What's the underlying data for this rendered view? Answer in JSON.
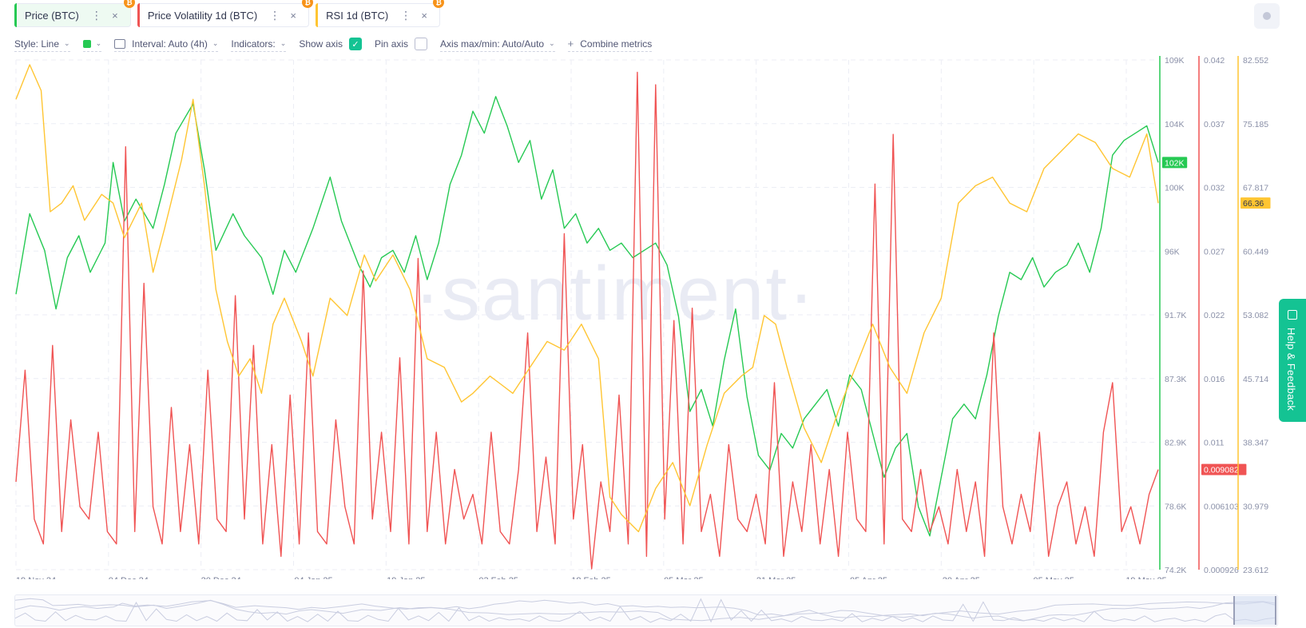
{
  "metric_chips": [
    {
      "label": "Price (BTC)",
      "color": "#26c953",
      "active": true,
      "badge": "₿"
    },
    {
      "label": "Price Volatility 1d (BTC)",
      "color": "#f05454",
      "active": false,
      "badge": "₿"
    },
    {
      "label": "RSI 1d (BTC)",
      "color": "#ffc532",
      "active": false,
      "badge": "₿"
    }
  ],
  "icons": {
    "more": "⋮",
    "close": "×",
    "chevron": "⌄",
    "check": "✓",
    "plus": "+"
  },
  "settings": {
    "style_label": "Style: Line",
    "interval_label": "Interval: Auto (4h)",
    "indicators_label": "Indicators:",
    "show_axis_label": "Show axis",
    "pin_axis_label": "Pin axis",
    "axis_maxmin_label": "Axis max/min: Auto/Auto",
    "combine_label": "Combine metrics"
  },
  "help_label": "Help & Feedback",
  "chart_data": {
    "type": "line",
    "watermark": "·santiment·",
    "x_ticks": [
      "19 Nov 24",
      "04 Dec 24",
      "20 Dec 24",
      "04 Jan 25",
      "19 Jan 25",
      "03 Feb 25",
      "18 Feb 25",
      "05 Mar 25",
      "21 Mar 25",
      "05 Apr 25",
      "20 Apr 25",
      "05 May 25",
      "19 May 25"
    ],
    "axes": {
      "price": {
        "ticks": [
          "109K",
          "104K",
          "100K",
          "96K",
          "91.7K",
          "87.3K",
          "82.9K",
          "78.6K",
          "74.2K"
        ],
        "range": [
          74200,
          109000
        ],
        "current_label": "102K",
        "color": "#26c953"
      },
      "volatility": {
        "ticks": [
          "0.042",
          "0.037",
          "0.032",
          "0.027",
          "0.022",
          "0.016",
          "0.011",
          "0.006103",
          "0.000926"
        ],
        "range": [
          0.000926,
          0.042
        ],
        "current_label": "0.009082",
        "color": "#f05454"
      },
      "rsi": {
        "ticks": [
          "82.552",
          "75.185",
          "67.817",
          "60.449",
          "53.082",
          "45.714",
          "38.347",
          "30.979",
          "23.612"
        ],
        "range": [
          23.612,
          82.552
        ],
        "current_label": "66.36",
        "color": "#ffc532"
      }
    },
    "series": [
      {
        "name": "Price (BTC)",
        "color": "#26c953",
        "x": [
          0,
          0.012,
          0.025,
          0.035,
          0.045,
          0.055,
          0.065,
          0.078,
          0.085,
          0.095,
          0.105,
          0.12,
          0.13,
          0.14,
          0.155,
          0.165,
          0.175,
          0.19,
          0.2,
          0.215,
          0.225,
          0.235,
          0.245,
          0.26,
          0.275,
          0.285,
          0.3,
          0.31,
          0.32,
          0.33,
          0.34,
          0.35,
          0.36,
          0.37,
          0.38,
          0.39,
          0.4,
          0.41,
          0.42,
          0.43,
          0.44,
          0.45,
          0.46,
          0.47,
          0.48,
          0.49,
          0.5,
          0.51,
          0.52,
          0.53,
          0.54,
          0.55,
          0.56,
          0.57,
          0.58,
          0.59,
          0.6,
          0.61,
          0.62,
          0.63,
          0.64,
          0.65,
          0.66,
          0.67,
          0.68,
          0.69,
          0.7,
          0.71,
          0.72,
          0.73,
          0.74,
          0.75,
          0.76,
          0.77,
          0.78,
          0.79,
          0.8,
          0.81,
          0.82,
          0.83,
          0.84,
          0.85,
          0.86,
          0.87,
          0.88,
          0.89,
          0.9,
          0.91,
          0.92,
          0.93,
          0.94,
          0.95,
          0.96,
          0.97,
          0.98,
          0.99,
          1.0
        ],
        "values": [
          93000,
          98500,
          96000,
          92000,
          95500,
          97000,
          94500,
          96500,
          102000,
          98000,
          99500,
          97500,
          100500,
          104000,
          106000,
          101500,
          96000,
          98500,
          97000,
          95500,
          93000,
          96000,
          94500,
          97500,
          101000,
          98000,
          95000,
          93500,
          95500,
          96000,
          94500,
          97000,
          94000,
          96500,
          100500,
          102500,
          105500,
          104000,
          106500,
          104500,
          102000,
          103500,
          99500,
          101500,
          97500,
          98500,
          96500,
          97500,
          96000,
          96500,
          95500,
          96000,
          96500,
          95000,
          91500,
          85000,
          86500,
          84000,
          88500,
          92000,
          86000,
          82000,
          81000,
          83500,
          82500,
          84500,
          85500,
          86500,
          84000,
          87500,
          86500,
          83500,
          80500,
          82500,
          83500,
          78500,
          76500,
          80500,
          84500,
          85500,
          84500,
          87500,
          91500,
          94500,
          94000,
          95500,
          93500,
          94500,
          95000,
          96500,
          94500,
          97500,
          102500,
          103500,
          104000,
          104500,
          102000
        ]
      },
      {
        "name": "Price Volatility 1d (BTC)",
        "color": "#f05454",
        "x": [
          0,
          0.008,
          0.016,
          0.024,
          0.032,
          0.04,
          0.048,
          0.056,
          0.064,
          0.072,
          0.08,
          0.088,
          0.096,
          0.104,
          0.112,
          0.12,
          0.128,
          0.136,
          0.144,
          0.152,
          0.16,
          0.168,
          0.176,
          0.184,
          0.192,
          0.2,
          0.208,
          0.216,
          0.224,
          0.232,
          0.24,
          0.248,
          0.256,
          0.264,
          0.272,
          0.28,
          0.288,
          0.296,
          0.304,
          0.312,
          0.32,
          0.328,
          0.336,
          0.344,
          0.352,
          0.36,
          0.368,
          0.376,
          0.384,
          0.392,
          0.4,
          0.408,
          0.416,
          0.424,
          0.432,
          0.44,
          0.448,
          0.456,
          0.464,
          0.472,
          0.48,
          0.488,
          0.496,
          0.504,
          0.512,
          0.52,
          0.528,
          0.536,
          0.544,
          0.552,
          0.56,
          0.568,
          0.576,
          0.584,
          0.592,
          0.6,
          0.608,
          0.616,
          0.624,
          0.632,
          0.64,
          0.648,
          0.656,
          0.664,
          0.672,
          0.68,
          0.688,
          0.696,
          0.704,
          0.712,
          0.72,
          0.728,
          0.736,
          0.744,
          0.752,
          0.76,
          0.768,
          0.776,
          0.784,
          0.792,
          0.8,
          0.808,
          0.816,
          0.824,
          0.832,
          0.84,
          0.848,
          0.856,
          0.864,
          0.872,
          0.88,
          0.888,
          0.896,
          0.904,
          0.912,
          0.92,
          0.928,
          0.936,
          0.944,
          0.952,
          0.96,
          0.968,
          0.976,
          0.984,
          0.992,
          1.0
        ],
        "values": [
          0.008,
          0.017,
          0.005,
          0.003,
          0.019,
          0.004,
          0.013,
          0.006,
          0.005,
          0.012,
          0.004,
          0.003,
          0.035,
          0.004,
          0.024,
          0.006,
          0.003,
          0.014,
          0.004,
          0.011,
          0.003,
          0.017,
          0.005,
          0.004,
          0.023,
          0.005,
          0.019,
          0.003,
          0.011,
          0.002,
          0.015,
          0.003,
          0.02,
          0.004,
          0.003,
          0.013,
          0.006,
          0.003,
          0.025,
          0.005,
          0.012,
          0.004,
          0.018,
          0.003,
          0.026,
          0.004,
          0.012,
          0.003,
          0.009,
          0.005,
          0.007,
          0.003,
          0.012,
          0.004,
          0.003,
          0.009,
          0.02,
          0.004,
          0.01,
          0.003,
          0.028,
          0.005,
          0.011,
          0.001,
          0.008,
          0.004,
          0.015,
          0.003,
          0.041,
          0.002,
          0.04,
          0.005,
          0.021,
          0.003,
          0.022,
          0.004,
          0.007,
          0.002,
          0.011,
          0.005,
          0.004,
          0.007,
          0.003,
          0.016,
          0.002,
          0.008,
          0.004,
          0.011,
          0.003,
          0.009,
          0.002,
          0.012,
          0.005,
          0.004,
          0.032,
          0.003,
          0.036,
          0.005,
          0.004,
          0.009,
          0.004,
          0.006,
          0.003,
          0.009,
          0.004,
          0.008,
          0.002,
          0.02,
          0.006,
          0.003,
          0.007,
          0.004,
          0.012,
          0.002,
          0.006,
          0.008,
          0.003,
          0.006,
          0.002,
          0.012,
          0.016,
          0.004,
          0.006,
          0.003,
          0.007,
          0.009
        ]
      },
      {
        "name": "RSI 1d (BTC)",
        "color": "#ffc532",
        "x": [
          0,
          0.012,
          0.022,
          0.03,
          0.04,
          0.05,
          0.06,
          0.075,
          0.085,
          0.095,
          0.11,
          0.12,
          0.13,
          0.145,
          0.155,
          0.165,
          0.175,
          0.185,
          0.195,
          0.205,
          0.215,
          0.225,
          0.235,
          0.25,
          0.26,
          0.275,
          0.29,
          0.305,
          0.315,
          0.33,
          0.345,
          0.36,
          0.375,
          0.39,
          0.4,
          0.415,
          0.425,
          0.435,
          0.45,
          0.465,
          0.48,
          0.495,
          0.51,
          0.52,
          0.53,
          0.545,
          0.56,
          0.575,
          0.59,
          0.605,
          0.62,
          0.635,
          0.645,
          0.655,
          0.665,
          0.675,
          0.69,
          0.705,
          0.72,
          0.735,
          0.75,
          0.765,
          0.78,
          0.795,
          0.81,
          0.825,
          0.84,
          0.855,
          0.87,
          0.885,
          0.9,
          0.915,
          0.93,
          0.945,
          0.96,
          0.975,
          0.99,
          1.0
        ],
        "values": [
          78,
          82,
          79,
          65,
          66,
          68,
          64,
          67,
          66,
          62,
          66,
          58,
          63,
          71,
          78,
          68,
          56,
          50,
          46,
          48,
          44,
          52,
          55,
          50,
          46,
          55,
          53,
          60,
          57,
          60,
          56,
          48,
          47,
          43,
          44,
          46,
          45,
          44,
          47,
          50,
          49,
          52,
          48,
          32,
          30,
          28,
          33,
          36,
          31,
          38,
          44,
          46,
          47,
          53,
          52,
          47,
          40,
          36,
          42,
          47,
          52,
          47,
          44,
          51,
          55,
          66,
          68,
          69,
          66,
          65,
          70,
          72,
          74,
          73,
          70,
          69,
          74,
          66
        ]
      }
    ]
  }
}
